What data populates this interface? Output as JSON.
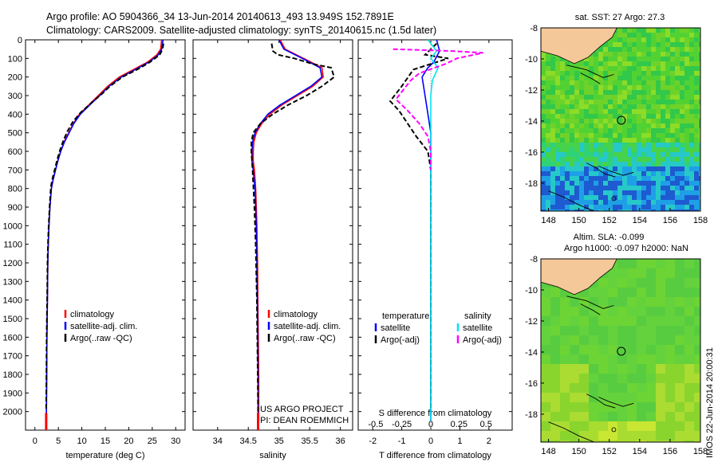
{
  "header": {
    "line1": "Argo profile: AO 5904366_34 13-Jun-2014 20140613_493 13.949S 152.7891E",
    "line2": "Climatology: CARS2009. Satellite-adjusted climatology: synTS_20140615.nc (1.5d later)"
  },
  "depth_ticks": [
    "0",
    "100",
    "200",
    "300",
    "400",
    "500",
    "600",
    "700",
    "800",
    "900",
    "1000",
    "1100",
    "1200",
    "1300",
    "1400",
    "1500",
    "1600",
    "1700",
    "1800",
    "1900",
    "2000"
  ],
  "colors": {
    "climatology": "#ff0000",
    "satellite": "#0000ff",
    "argo": "#000000",
    "salinity_sat": "#00e5ee",
    "salinity_argo": "#ff00ff"
  },
  "chart_data": [
    {
      "id": "temperature",
      "type": "line",
      "xlabel": "temperature (deg C)",
      "ylabel": "",
      "xlim": [
        -2,
        32
      ],
      "ylim": [
        2100,
        0
      ],
      "xticks": [
        "0",
        "5",
        "10",
        "15",
        "20",
        "25",
        "30"
      ],
      "xtick_values": [
        0,
        5,
        10,
        15,
        20,
        25,
        30
      ],
      "legend": [
        "climatology",
        "satellite-adj. clim.",
        "Argo(..raw -QC)"
      ],
      "series": [
        {
          "name": "climatology",
          "color": "#ff0000",
          "dashed": false,
          "x": [
            27.0,
            26.8,
            26.0,
            24.0,
            21.0,
            18.0,
            15.5,
            13.5,
            11.5,
            9.5,
            8.2,
            7.2,
            6.2,
            5.5,
            4.9,
            4.4,
            3.9,
            3.5,
            3.2,
            3.0,
            2.85,
            2.75,
            2.65,
            2.55,
            2.5,
            2.45,
            2.45
          ],
          "y": [
            0,
            50,
            80,
            120,
            160,
            200,
            250,
            300,
            350,
            400,
            450,
            500,
            550,
            600,
            650,
            700,
            750,
            800,
            900,
            1000,
            1100,
            1200,
            1400,
            1600,
            1800,
            2000,
            2050
          ]
        },
        {
          "name": "satellite-adj. clim.",
          "color": "#0000ff",
          "dashed": false,
          "x": [
            27.3,
            27.0,
            26.3,
            24.3,
            21.4,
            18.4,
            15.8,
            13.8,
            11.7,
            9.7,
            8.3,
            7.3,
            6.3,
            5.5,
            4.9,
            4.4,
            3.9,
            3.5,
            3.2,
            3.0,
            2.85,
            2.75,
            2.65,
            2.55,
            2.5,
            2.45,
            2.45
          ],
          "y": [
            0,
            50,
            80,
            120,
            160,
            200,
            250,
            300,
            350,
            400,
            450,
            500,
            550,
            600,
            650,
            700,
            750,
            800,
            900,
            1000,
            1100,
            1200,
            1400,
            1600,
            1800,
            2000,
            2050
          ]
        },
        {
          "name": "Argo(..raw -QC)",
          "color": "#000000",
          "dashed": true,
          "x": [
            27.4,
            27.2,
            26.6,
            24.5,
            21.8,
            18.6,
            16.0,
            14.3,
            12.0,
            9.8,
            8.1,
            7.0,
            6.1,
            5.4,
            4.8,
            4.3,
            3.8,
            3.4,
            3.15,
            2.95,
            2.8,
            2.7,
            2.6,
            2.5,
            2.45,
            2.4
          ],
          "y": [
            20,
            50,
            80,
            120,
            160,
            200,
            250,
            290,
            340,
            390,
            440,
            490,
            540,
            590,
            640,
            690,
            740,
            790,
            890,
            990,
            1090,
            1190,
            1390,
            1590,
            1790,
            1990
          ]
        }
      ],
      "bottom_marker": {
        "x": 2.4,
        "y": 2050
      }
    },
    {
      "id": "salinity",
      "type": "line",
      "xlabel": "salinity",
      "ylabel": "",
      "xlim": [
        33.6,
        36.2
      ],
      "ylim": [
        2100,
        0
      ],
      "xticks": [
        "34",
        "34.5",
        "35",
        "35.5",
        "36"
      ],
      "xtick_values": [
        34,
        34.5,
        35,
        35.5,
        36
      ],
      "legend": [
        "climatology",
        "satellite-adj. clim.",
        "Argo(..raw -QC)"
      ],
      "annotation": [
        "US ARGO PROJECT",
        "PI: DEAN ROEMMICH"
      ],
      "series": [
        {
          "name": "climatology",
          "color": "#ff0000",
          "dashed": false,
          "x": [
            35.02,
            35.1,
            35.4,
            35.7,
            35.72,
            35.55,
            35.3,
            35.05,
            34.85,
            34.72,
            34.63,
            34.59,
            34.58,
            34.58,
            34.6,
            34.62,
            34.64,
            34.65,
            34.66,
            34.67,
            34.67
          ],
          "y": [
            0,
            50,
            100,
            150,
            200,
            250,
            300,
            350,
            400,
            450,
            500,
            550,
            600,
            650,
            700,
            800,
            1000,
            1200,
            1500,
            1800,
            2050
          ]
        },
        {
          "name": "satellite-adj. clim.",
          "color": "#0000ff",
          "dashed": false,
          "x": [
            35.0,
            35.08,
            35.38,
            35.67,
            35.7,
            35.52,
            35.27,
            35.02,
            34.82,
            34.7,
            34.61,
            34.57,
            34.56,
            34.56,
            34.58,
            34.61,
            34.63,
            34.64,
            34.65,
            34.66,
            34.66
          ],
          "y": [
            0,
            50,
            100,
            150,
            200,
            250,
            300,
            350,
            400,
            450,
            500,
            550,
            600,
            650,
            700,
            800,
            1000,
            1200,
            1500,
            1800,
            2050
          ]
        },
        {
          "name": "Argo(..raw -QC)",
          "color": "#000000",
          "dashed": true,
          "x": [
            34.88,
            34.9,
            34.98,
            35.25,
            35.55,
            35.85,
            35.9,
            35.7,
            35.45,
            35.15,
            34.9,
            34.7,
            34.58,
            34.55,
            34.55,
            34.57,
            34.6,
            34.62,
            34.64,
            34.65,
            34.66
          ],
          "y": [
            20,
            60,
            80,
            100,
            130,
            150,
            200,
            250,
            300,
            350,
            400,
            450,
            500,
            550,
            600,
            700,
            900,
            1100,
            1400,
            1700,
            2000
          ]
        }
      ],
      "bottom_marker": {
        "x": 34.66,
        "y": 2050
      }
    },
    {
      "id": "difference",
      "type": "line",
      "xlabel": "T difference from climatology",
      "top_xlabel": "S difference from climatology",
      "xlim": [
        -2.5,
        2.8
      ],
      "ylim": [
        2100,
        0
      ],
      "xticks": [
        "-2",
        "-1",
        "0",
        "1",
        "2"
      ],
      "xtick_values": [
        -2,
        -1,
        0,
        1,
        2
      ],
      "top_xticks": [
        "-0.5",
        "-0.25",
        "0",
        "0.25",
        "0.5"
      ],
      "top_xtick_values": [
        -1.9,
        -1.0,
        0,
        0.97,
        1.9
      ],
      "legend_titles": [
        "temperature",
        "salinity"
      ],
      "legend": [
        "satellite",
        "Argo(-adj)",
        "satellite",
        "Argo(-adj)"
      ],
      "series": [
        {
          "name": "temperature satellite",
          "color": "#0000ff",
          "dashed": false,
          "x": [
            0.2,
            0.3,
            0.1,
            -0.1,
            -0.3,
            -0.2,
            -0.1,
            0.0,
            0.0,
            0.0,
            0.0,
            0.0,
            0.0
          ],
          "y": [
            0,
            60,
            120,
            150,
            200,
            300,
            400,
            500,
            600,
            800,
            1200,
            1600,
            2050
          ]
        },
        {
          "name": "temperature Argo(-adj)",
          "color": "#000000",
          "dashed": true,
          "x": [
            0.2,
            -0.2,
            0.6,
            -0.6,
            -1.0,
            -1.4,
            -1.1,
            -0.8,
            -0.5,
            -0.1,
            0.0,
            0.0,
            0.0,
            0.0
          ],
          "y": [
            20,
            80,
            100,
            160,
            250,
            330,
            380,
            450,
            520,
            600,
            700,
            1000,
            1500,
            2000
          ]
        },
        {
          "name": "salinity satellite",
          "color": "#00e5ee",
          "dashed": false,
          "x": [
            -0.1,
            0.2,
            0.0,
            0.25,
            0.05,
            0.0,
            0.0,
            0.0,
            0.0,
            0.0
          ],
          "y": [
            0,
            60,
            100,
            150,
            220,
            300,
            500,
            800,
            1400,
            2050
          ]
        },
        {
          "name": "salinity Argo(-adj)",
          "color": "#ff00ff",
          "dashed": true,
          "x": [
            -1.3,
            0.7,
            1.8,
            0.9,
            0.5,
            -0.4,
            -0.7,
            -1.2,
            -0.8,
            -0.4,
            -0.1,
            0.0,
            0.0
          ],
          "y": [
            50,
            60,
            70,
            100,
            130,
            180,
            220,
            320,
            380,
            450,
            520,
            600,
            700
          ]
        }
      ]
    }
  ],
  "sst_map": {
    "title": "sat. SST: 27 Argo: 27.3",
    "xticks": [
      "148",
      "150",
      "152",
      "154",
      "156",
      "158"
    ],
    "yticks": [
      "-8",
      "-10",
      "-12",
      "-14",
      "-16",
      "-18"
    ],
    "lon_range": [
      147.5,
      158
    ],
    "lat_range": [
      -19.8,
      -8
    ],
    "argo_position": {
      "lon": 152.79,
      "lat": -13.95
    }
  },
  "sla_map": {
    "title1": "Altim. SLA: -0.099",
    "title2": "Argo h1000: -0.097 h2000: NaN",
    "xticks": [
      "148",
      "150",
      "152",
      "154",
      "156",
      "158"
    ],
    "yticks": [
      "-8",
      "-10",
      "-12",
      "-14",
      "-16",
      "-18"
    ],
    "lon_range": [
      147.5,
      158
    ],
    "lat_range": [
      -19.8,
      -8
    ],
    "argo_position": {
      "lon": 152.79,
      "lat": -13.95
    }
  },
  "footer_stamp": "IMOS 22-Jun-2014 20:00:31"
}
